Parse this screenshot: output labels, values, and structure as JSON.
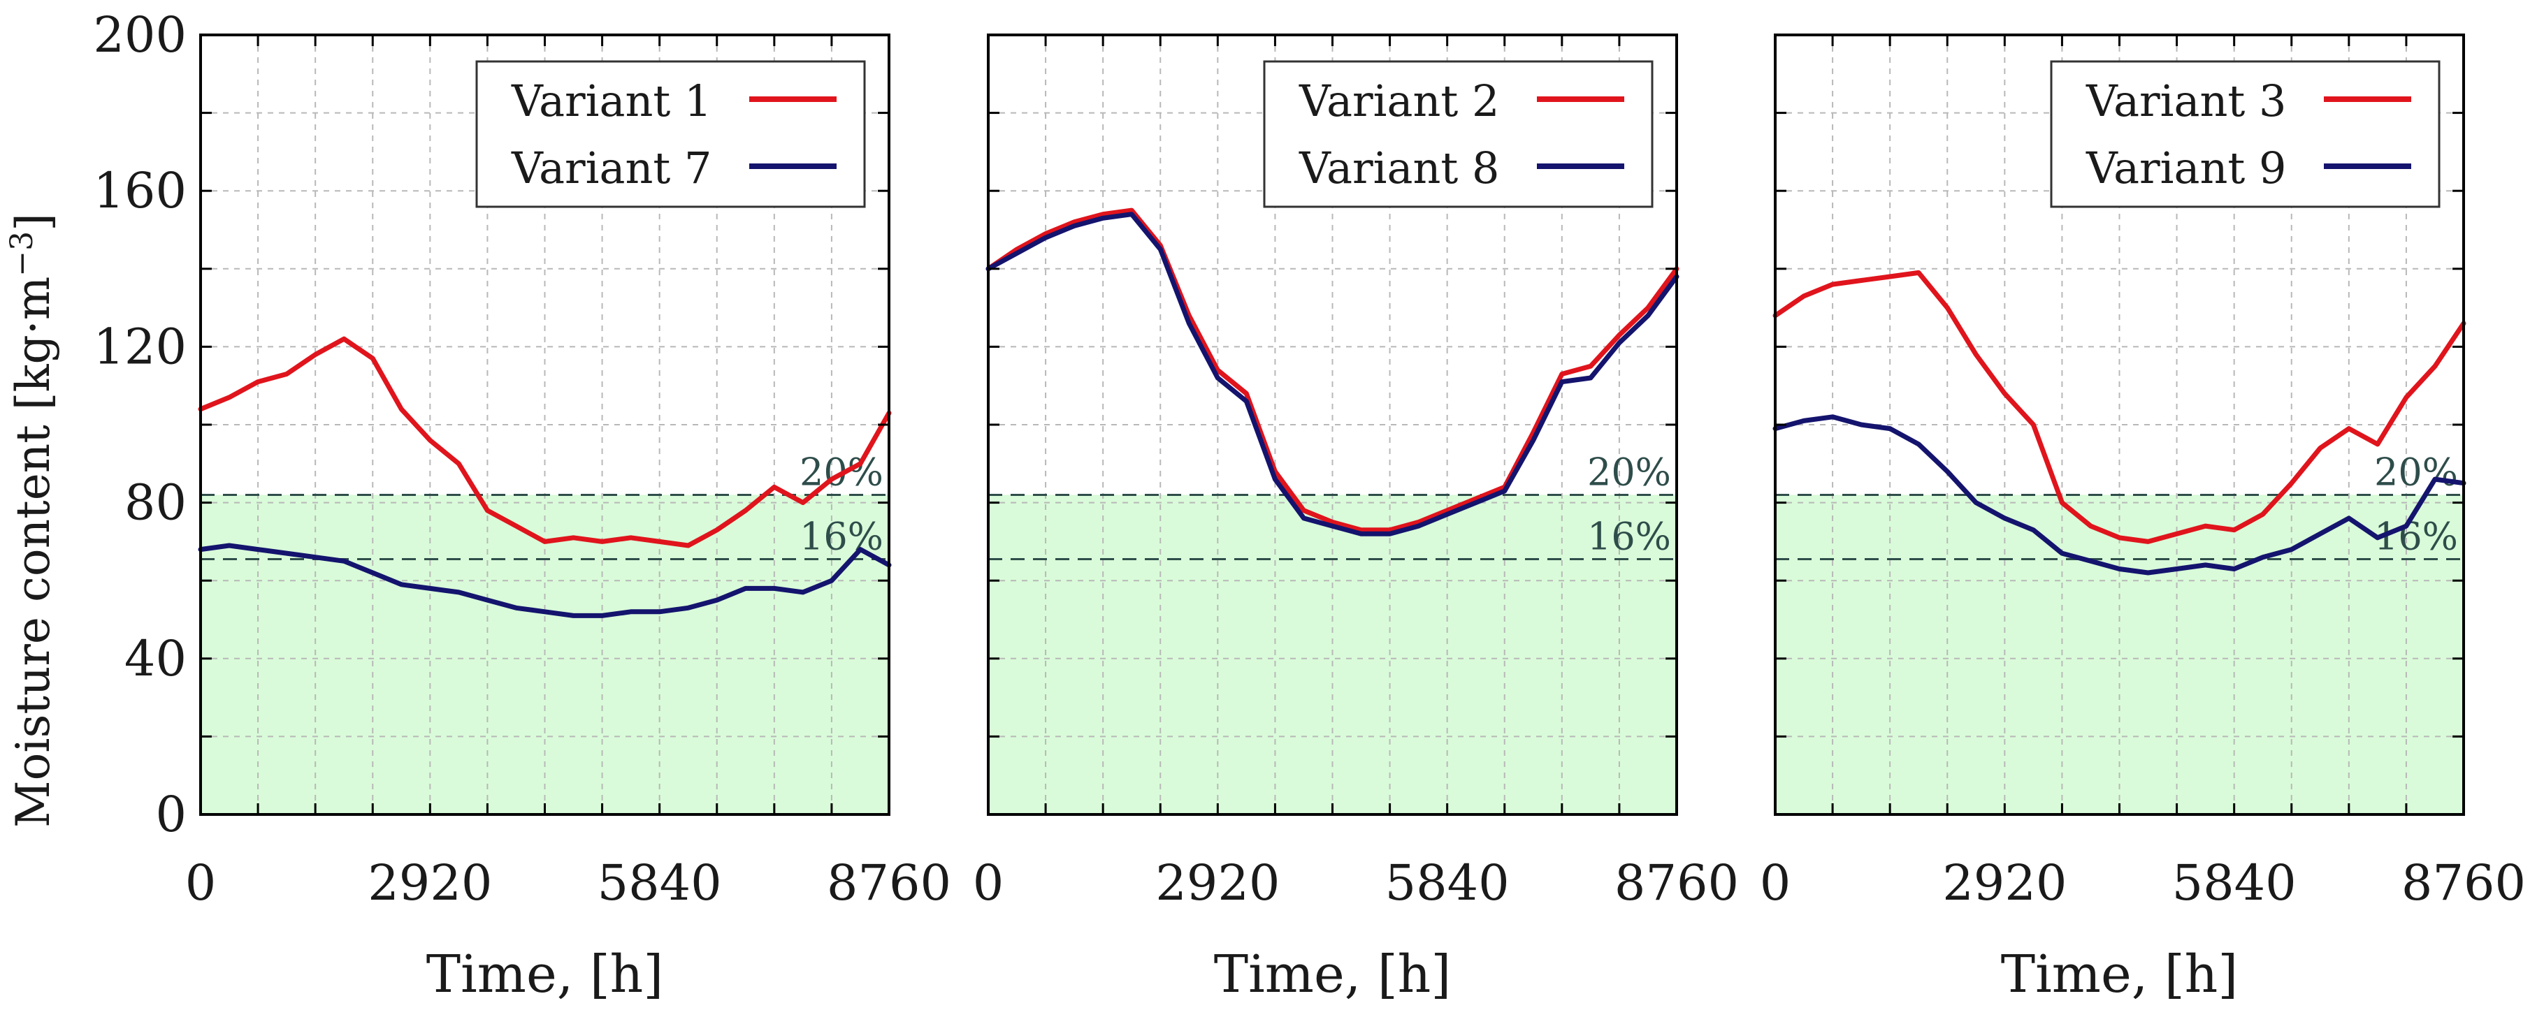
{
  "figure": {
    "ylabel": "Moisture content [kg·m",
    "ylabel_unit_exponent": "−3",
    "ylabel_suffix": "]"
  },
  "chart_data": [
    {
      "type": "line",
      "xlabel": "Time, [h]",
      "ylabel": "Moisture content [kg·m−3]",
      "xlim": [
        0,
        8760
      ],
      "ylim": [
        0,
        200
      ],
      "xticks": [
        0,
        2920,
        5840,
        8760
      ],
      "yticks": [
        0,
        40,
        80,
        120,
        160,
        200
      ],
      "grid": true,
      "legend_position": "top-right",
      "thresholds": [
        {
          "label": "20%",
          "value": 82
        },
        {
          "label": "16%",
          "value": 65.5
        }
      ],
      "shaded_region": {
        "from": 0,
        "to": 82,
        "color": "#d9fbd9"
      },
      "series": [
        {
          "name": "Variant 1",
          "color": "#e0141c",
          "x": [
            0,
            365,
            730,
            1095,
            1460,
            1825,
            2190,
            2555,
            2920,
            3285,
            3650,
            4015,
            4380,
            4745,
            5110,
            5475,
            5840,
            6205,
            6570,
            6935,
            7300,
            7665,
            8030,
            8395,
            8760
          ],
          "y": [
            104,
            107,
            111,
            113,
            118,
            122,
            117,
            104,
            96,
            90,
            78,
            74,
            70,
            71,
            70,
            71,
            70,
            69,
            73,
            78,
            84,
            80,
            86,
            90,
            103
          ]
        },
        {
          "name": "Variant 7",
          "color": "#14146e",
          "x": [
            0,
            365,
            730,
            1095,
            1460,
            1825,
            2190,
            2555,
            2920,
            3285,
            3650,
            4015,
            4380,
            4745,
            5110,
            5475,
            5840,
            6205,
            6570,
            6935,
            7300,
            7665,
            8030,
            8395,
            8760
          ],
          "y": [
            68,
            69,
            68,
            67,
            66,
            65,
            62,
            59,
            58,
            57,
            55,
            53,
            52,
            51,
            51,
            52,
            52,
            53,
            55,
            58,
            58,
            57,
            60,
            68,
            64
          ]
        },
        {
          "name": "Variant 2",
          "color": "#e0141c",
          "x": [
            0,
            365,
            730,
            1095,
            1460,
            1825,
            2190,
            2555,
            2920,
            3285,
            3650,
            4015,
            4380,
            4745,
            5110,
            5475,
            5840,
            6205,
            6570,
            6935,
            7300,
            7665,
            8030,
            8395,
            8760
          ],
          "y": [
            140,
            145,
            149,
            152,
            154,
            155,
            146,
            128,
            114,
            108,
            88,
            78,
            75,
            73,
            73,
            75,
            78,
            81,
            84,
            98,
            113,
            115,
            123,
            130,
            140
          ]
        },
        {
          "name": "Variant 8",
          "color": "#14146e",
          "x": [
            0,
            365,
            730,
            1095,
            1460,
            1825,
            2190,
            2555,
            2920,
            3285,
            3650,
            4015,
            4380,
            4745,
            5110,
            5475,
            5840,
            6205,
            6570,
            6935,
            7300,
            7665,
            8030,
            8395,
            8760
          ],
          "y": [
            140,
            144,
            148,
            151,
            153,
            154,
            145,
            126,
            112,
            106,
            86,
            76,
            74,
            72,
            72,
            74,
            77,
            80,
            83,
            96,
            111,
            112,
            121,
            128,
            138
          ]
        },
        {
          "name": "Variant 3",
          "color": "#e0141c",
          "x": [
            0,
            365,
            730,
            1095,
            1460,
            1825,
            2190,
            2555,
            2920,
            3285,
            3650,
            4015,
            4380,
            4745,
            5110,
            5475,
            5840,
            6205,
            6570,
            6935,
            7300,
            7665,
            8030,
            8395,
            8760
          ],
          "y": [
            128,
            133,
            136,
            137,
            138,
            139,
            130,
            118,
            108,
            100,
            80,
            74,
            71,
            70,
            72,
            74,
            73,
            77,
            85,
            94,
            99,
            95,
            107,
            115,
            126
          ]
        },
        {
          "name": "Variant 9",
          "color": "#14146e",
          "x": [
            0,
            365,
            730,
            1095,
            1460,
            1825,
            2190,
            2555,
            2920,
            3285,
            3650,
            4015,
            4380,
            4745,
            5110,
            5475,
            5840,
            6205,
            6570,
            6935,
            7300,
            7665,
            8030,
            8395,
            8760
          ],
          "y": [
            99,
            101,
            102,
            100,
            99,
            95,
            88,
            80,
            76,
            73,
            67,
            65,
            63,
            62,
            63,
            64,
            63,
            66,
            68,
            72,
            76,
            71,
            74,
            86,
            85
          ]
        }
      ]
    }
  ]
}
